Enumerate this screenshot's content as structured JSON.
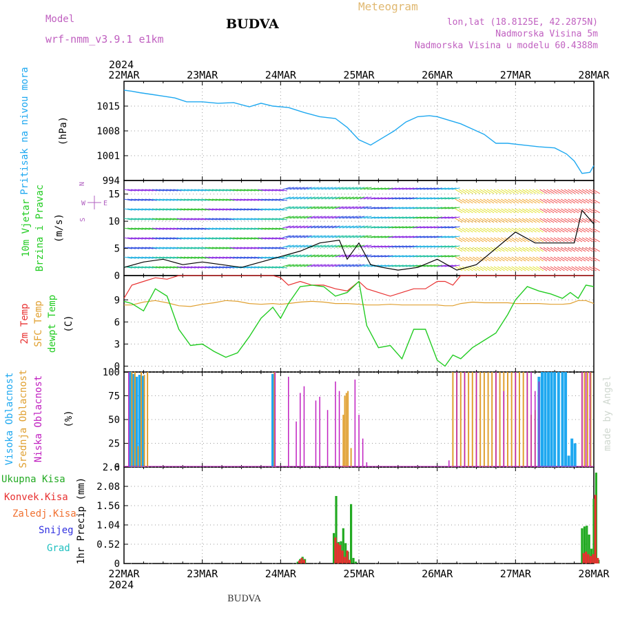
{
  "header": {
    "model_label": "Model",
    "model_name": "wrf-nmm_v3.9.1 e1km",
    "station": "BUDVA",
    "product": "Meteogram",
    "lonlat": "lon,lat (18.8125E, 42.2875N)",
    "elevation": "Nadmorska Visina 5m",
    "model_elevation": "Nadmorska Visina u modelu 60.4388m",
    "footer_station": "BUDVA",
    "credit": "made by Angel"
  },
  "colors": {
    "pressure": "#1ea8f0",
    "temp2m": "#e83030",
    "sfc_temp": "#e0a030",
    "dewpt": "#22cc22",
    "high_cloud": "#1ea8f0",
    "mid_cloud": "#e0a030",
    "low_cloud": "#c020c0",
    "total_precip": "#22aa22",
    "conv_precip": "#e83030",
    "frozen_precip": "#f07030",
    "snow": "#3030e0",
    "graupel": "#20c0c0"
  },
  "time_axis": {
    "labels": [
      "22MAR",
      "23MAR",
      "24MAR",
      "25MAR",
      "26MAR",
      "27MAR",
      "28MAR"
    ],
    "year": "2024"
  },
  "chart_data": [
    {
      "type": "line",
      "panel": "pressure",
      "ylabel_left": "Pritisak na nivou mora",
      "unit": "(hPa)",
      "ylim": [
        994,
        1022
      ],
      "yticks": [
        994,
        1001,
        1008,
        1015
      ],
      "grid": true,
      "x_days": [
        0,
        0.1,
        0.2,
        0.35,
        0.5,
        0.65,
        0.8,
        1.0,
        1.2,
        1.4,
        1.6,
        1.75,
        1.9,
        2.1,
        2.3,
        2.5,
        2.7,
        2.85,
        3.0,
        3.15,
        3.3,
        3.45,
        3.6,
        3.75,
        3.9,
        4.0,
        4.15,
        4.3,
        4.45,
        4.6,
        4.75,
        4.9,
        5.1,
        5.3,
        5.5,
        5.65,
        5.75,
        5.85,
        5.95,
        6.0
      ],
      "series": [
        {
          "values": [
            1019.5,
            1019.2,
            1018.8,
            1018.3,
            1017.8,
            1017.3,
            1016.2,
            1016.2,
            1015.8,
            1016.0,
            1014.8,
            1015.8,
            1015.0,
            1014.6,
            1013.2,
            1012.0,
            1011.5,
            1009.0,
            1005.5,
            1004.0,
            1006.0,
            1008.0,
            1010.5,
            1012.0,
            1012.3,
            1012.0,
            1011.0,
            1010.0,
            1008.5,
            1007.0,
            1004.5,
            1004.5,
            1004.0,
            1003.5,
            1003.2,
            1001.5,
            999.5,
            996.0,
            996.3,
            998.2
          ]
        }
      ]
    },
    {
      "type": "line",
      "panel": "wind",
      "ylabel_left": [
        "10m Vjetar",
        "Brzina i Pravac"
      ],
      "unit": "(m/s)",
      "ylim": [
        0,
        17.5
      ],
      "yticks": [
        0,
        5,
        10,
        15
      ],
      "grid": true,
      "compass": [
        "N",
        "W",
        "E",
        "S"
      ],
      "x_days": [
        0,
        0.25,
        0.5,
        0.75,
        1.0,
        1.25,
        1.5,
        1.75,
        2.0,
        2.25,
        2.5,
        2.75,
        2.85,
        3.0,
        3.15,
        3.3,
        3.5,
        3.75,
        4.0,
        4.25,
        4.5,
        4.75,
        5.0,
        5.25,
        5.5,
        5.75,
        5.85,
        6.0
      ],
      "series": [
        {
          "name": "speed",
          "values": [
            1.5,
            2.5,
            3.0,
            2.0,
            2.5,
            2.0,
            1.5,
            2.5,
            3.5,
            4.5,
            6.0,
            6.5,
            3.0,
            6.0,
            2.0,
            1.5,
            1.0,
            1.5,
            3.0,
            1.0,
            2.0,
            5.0,
            8.0,
            6.0,
            6.0,
            6.0,
            12.0,
            9.5
          ]
        }
      ]
    },
    {
      "type": "line",
      "panel": "temperature",
      "ylabel_left": [
        "2m Temp",
        "SFC Temp",
        "dewpt Temp"
      ],
      "unit": "(C)",
      "ylim": [
        -0.8,
        12.3
      ],
      "yticks": [
        0,
        3,
        6,
        9
      ],
      "grid": true,
      "x_days": [
        0,
        0.1,
        0.25,
        0.4,
        0.55,
        0.7,
        0.85,
        1.0,
        1.15,
        1.3,
        1.45,
        1.6,
        1.75,
        1.9,
        2.0,
        2.1,
        2.25,
        2.4,
        2.55,
        2.7,
        2.85,
        3.0,
        3.1,
        3.25,
        3.4,
        3.55,
        3.7,
        3.85,
        4.0,
        4.1,
        4.2,
        4.3,
        4.45,
        4.6,
        4.75,
        4.9,
        5.0,
        5.15,
        5.3,
        5.45,
        5.6,
        5.7,
        5.8,
        5.9,
        6.0
      ],
      "series": [
        {
          "name": "2m Temp",
          "values": [
            9.2,
            11.0,
            11.5,
            12.0,
            11.8,
            12.5,
            12.5,
            12.8,
            12.5,
            12.5,
            12.5,
            12.5,
            12.5,
            12.3,
            12.0,
            11.0,
            11.5,
            11.0,
            11.0,
            10.5,
            10.2,
            11.5,
            10.5,
            10.0,
            9.5,
            10.0,
            10.5,
            10.5,
            11.5,
            11.5,
            11.0,
            12.5,
            12.5,
            12.5,
            12.5,
            12.5,
            12.5,
            12.5,
            12.5,
            12.5,
            12.5,
            12.5,
            12.5,
            12.5,
            12.5
          ]
        },
        {
          "name": "SFC Temp",
          "values": [
            8.3,
            8.3,
            8.7,
            8.9,
            8.6,
            8.2,
            8.1,
            8.4,
            8.6,
            8.9,
            8.8,
            8.5,
            8.4,
            8.5,
            8.4,
            8.5,
            8.7,
            8.8,
            8.7,
            8.5,
            8.5,
            8.4,
            8.3,
            8.3,
            8.4,
            8.3,
            8.3,
            8.3,
            8.3,
            8.2,
            8.2,
            8.5,
            8.7,
            8.6,
            8.6,
            8.6,
            8.5,
            8.5,
            8.5,
            8.4,
            8.4,
            8.5,
            8.9,
            8.9,
            8.5
          ]
        },
        {
          "name": "dewpt Temp",
          "values": [
            8.8,
            8.5,
            7.5,
            10.5,
            9.5,
            5.0,
            2.8,
            3.0,
            2.0,
            1.2,
            1.8,
            4.0,
            6.5,
            8.0,
            6.5,
            8.5,
            10.8,
            11.0,
            10.8,
            9.5,
            10.0,
            11.5,
            5.5,
            2.5,
            2.8,
            1.0,
            5.0,
            5.0,
            0.8,
            0.0,
            1.5,
            1.0,
            2.5,
            3.5,
            4.5,
            7.0,
            9.0,
            10.8,
            10.2,
            9.8,
            9.2,
            10.0,
            9.2,
            11.0,
            10.8
          ]
        }
      ]
    },
    {
      "type": "bar",
      "panel": "cloud",
      "ylabel_left": [
        "Visoka Oblacnost",
        "Srednja Oblacnost",
        "Niska Oblacnost"
      ],
      "unit": "(%)",
      "ylim": [
        0,
        100
      ],
      "yticks": [
        0,
        25,
        50,
        75,
        100
      ],
      "grid": true,
      "series": [
        {
          "name": "Visoka Oblacnost",
          "x_days": [
            0.08,
            0.12,
            0.16,
            0.2,
            0.24,
            1.9,
            5.3,
            5.34,
            5.38,
            5.42,
            5.46,
            5.5,
            5.55,
            5.6,
            5.64,
            5.68,
            5.72,
            5.76
          ],
          "values": [
            100,
            98,
            95,
            97,
            96,
            98,
            95,
            100,
            100,
            100,
            100,
            100,
            100,
            100,
            100,
            12,
            30,
            25
          ]
        },
        {
          "name": "Srednja Oblacnost",
          "x_days": [
            0.1,
            0.14,
            0.18,
            0.22,
            0.26,
            0.3,
            1.92,
            2.8,
            2.82,
            2.84,
            2.86,
            2.9,
            4.2,
            4.25,
            4.3,
            4.35,
            4.4,
            4.45,
            4.5,
            4.55,
            4.6,
            4.65,
            4.7,
            4.75,
            4.8,
            4.85,
            4.9,
            4.95,
            5.0,
            5.05,
            5.1,
            5.15,
            5.2,
            5.25,
            5.85,
            5.88,
            5.92,
            5.96
          ],
          "values": [
            100,
            100,
            22,
            100,
            97,
            100,
            100,
            55,
            75,
            78,
            80,
            20,
            100,
            100,
            100,
            100,
            100,
            100,
            100,
            100,
            100,
            100,
            100,
            100,
            100,
            100,
            100,
            100,
            100,
            100,
            100,
            100,
            55,
            60,
            100,
            100,
            100,
            100
          ]
        },
        {
          "name": "Niska Oblacnost",
          "x_days": [
            0.06,
            1.93,
            2.1,
            2.2,
            2.25,
            2.3,
            2.45,
            2.5,
            2.6,
            2.7,
            2.75,
            2.95,
            3.0,
            3.05,
            3.1,
            4.15,
            4.25,
            4.35,
            4.5,
            4.75,
            4.85,
            5.0,
            5.15,
            5.2,
            5.25,
            5.3,
            5.85,
            5.9,
            5.95
          ],
          "values": [
            100,
            100,
            95,
            48,
            78,
            85,
            70,
            74,
            60,
            90,
            80,
            92,
            55,
            30,
            5,
            7,
            100,
            100,
            100,
            100,
            80,
            100,
            100,
            100,
            80,
            90,
            100,
            100,
            100
          ]
        }
      ]
    },
    {
      "type": "bar",
      "panel": "precipitation",
      "ylabel_left": [
        "Ukupna Kisa",
        "Konvek.Kisa",
        "Zaledj.Kisa",
        "Snijeg",
        "Grad"
      ],
      "unit": "1hr Precip (mm)",
      "ylim": [
        0,
        2.6
      ],
      "yticks": [
        0,
        0.52,
        1.04,
        1.56,
        2.08,
        2.6
      ],
      "grid": true,
      "series": [
        {
          "name": "Ukupna Kisa",
          "x_days": [
            2.22,
            2.25,
            2.28,
            2.31,
            2.68,
            2.71,
            2.74,
            2.77,
            2.8,
            2.83,
            2.86,
            2.9,
            2.93,
            2.96,
            2.99,
            3.02,
            5.85,
            5.88,
            5.91,
            5.94,
            5.97,
            6.0,
            6.03,
            6.06,
            5.98,
            6.01
          ],
          "values": [
            0.05,
            0.12,
            0.18,
            0.12,
            0.82,
            1.82,
            0.58,
            0.6,
            0.95,
            0.55,
            0.32,
            1.6,
            0.15,
            0.05,
            0.0,
            0.0,
            0.95,
            1.0,
            1.02,
            0.78,
            0.4,
            1.75,
            2.45,
            0.1,
            0.0,
            0.0
          ]
        },
        {
          "name": "Konvek.Kisa",
          "x_days": [
            2.24,
            2.27,
            2.3,
            2.7,
            2.73,
            2.76,
            2.79,
            2.82,
            2.85,
            2.88,
            2.92,
            5.87,
            5.9,
            5.93,
            5.96,
            5.99,
            6.02,
            6.05
          ],
          "values": [
            0.08,
            0.15,
            0.1,
            0.7,
            0.55,
            0.5,
            0.35,
            0.18,
            0.35,
            0.1,
            0.0,
            0.28,
            0.32,
            0.25,
            0.2,
            0.25,
            1.85,
            0.15
          ]
        },
        {
          "name": "Zaledj.Kisa",
          "x_days": [],
          "values": []
        },
        {
          "name": "Snijeg",
          "x_days": [],
          "values": []
        },
        {
          "name": "Grad",
          "x_days": [],
          "values": []
        }
      ]
    }
  ]
}
